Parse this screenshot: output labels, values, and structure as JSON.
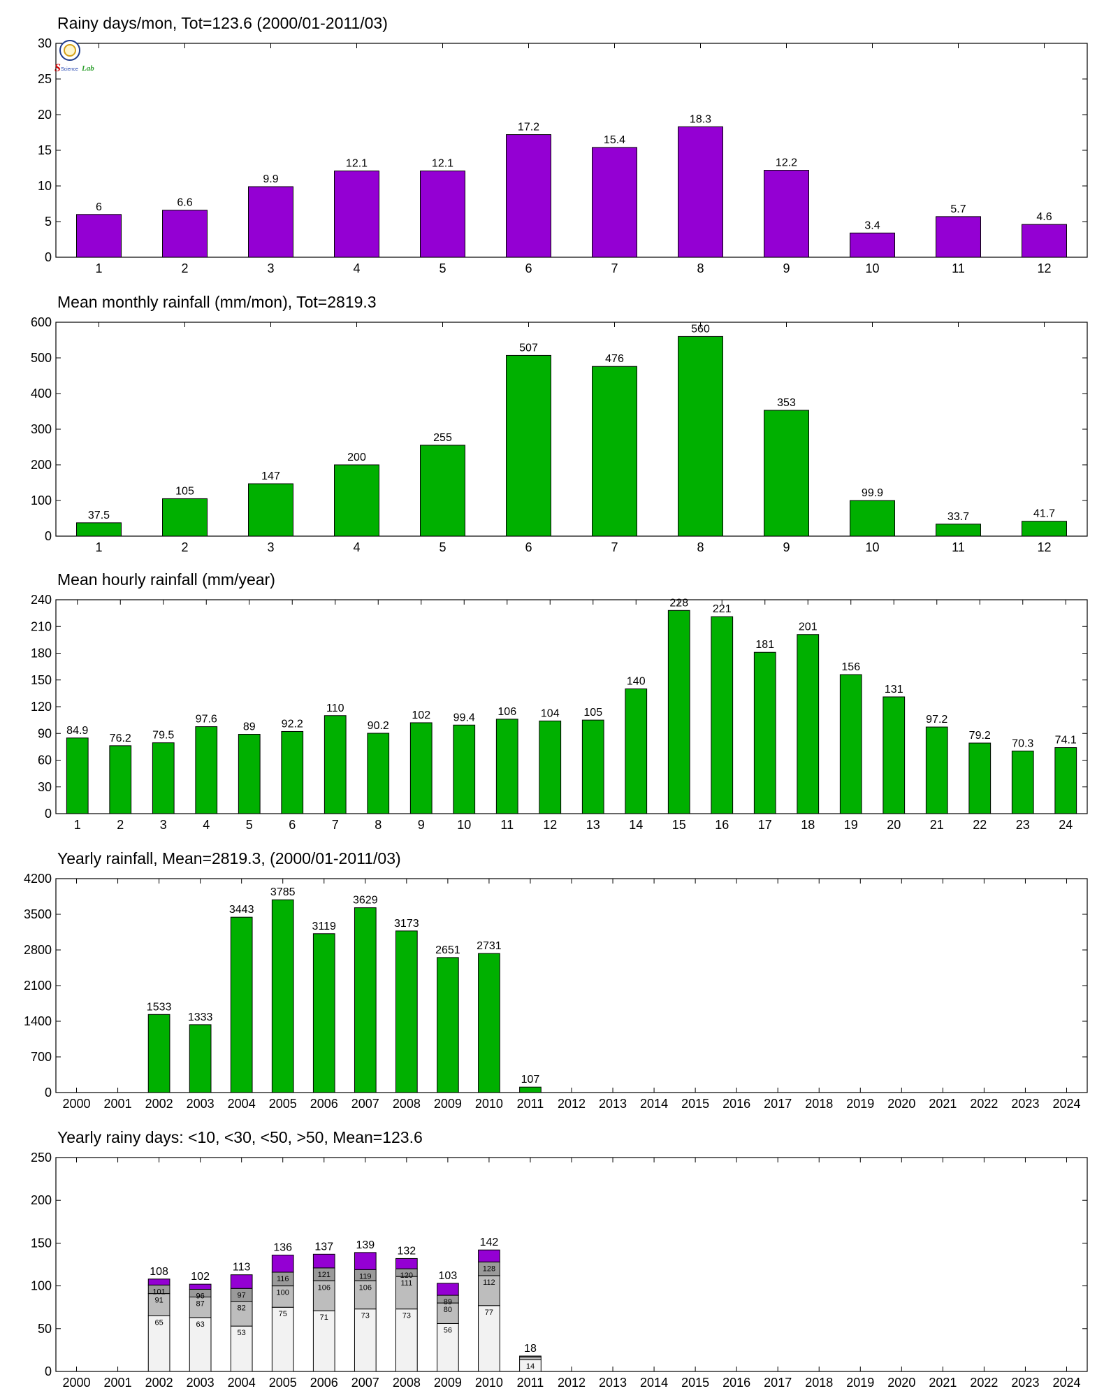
{
  "logo": {
    "text_top": "S",
    "text_mid": "Science",
    "text_right": "Lab",
    "colors": {
      "ring": "#1e3a8a",
      "gold": "#d4a017",
      "red": "#d00000",
      "blue": "#1e40af",
      "green": "#2ea02e"
    }
  },
  "colors": {
    "purple": "#9400d3",
    "green": "#00b000",
    "light_gray": "#f2f2f2",
    "mid_gray": "#bdbdbd",
    "dark_gray": "#9a9a9a"
  },
  "chart_data": [
    {
      "type": "bar",
      "title": "Rainy days/mon, Tot=123.6 (2000/01-2011/03)",
      "categories": [
        "1",
        "2",
        "3",
        "4",
        "5",
        "6",
        "7",
        "8",
        "9",
        "10",
        "11",
        "12"
      ],
      "values": [
        6,
        6.6,
        9.9,
        12.1,
        12.1,
        17.2,
        15.4,
        18.3,
        12.2,
        3.4,
        5.7,
        4.6
      ],
      "labels": [
        "6",
        "6.6",
        "9.9",
        "12.1",
        "12.1",
        "17.2",
        "15.4",
        "18.3",
        "12.2",
        "3.4",
        "5.7",
        "4.6"
      ],
      "ylim": [
        0,
        30
      ],
      "yticks": [
        0,
        5,
        10,
        15,
        20,
        25,
        30
      ],
      "color": "#9400d3",
      "grid": false,
      "xlabel": "",
      "ylabel": ""
    },
    {
      "type": "bar",
      "title": "Mean monthly rainfall (mm/mon), Tot=2819.3",
      "categories": [
        "1",
        "2",
        "3",
        "4",
        "5",
        "6",
        "7",
        "8",
        "9",
        "10",
        "11",
        "12"
      ],
      "values": [
        37.5,
        105,
        147,
        200,
        255,
        507,
        476,
        560,
        353,
        99.9,
        33.7,
        41.7
      ],
      "labels": [
        "37.5",
        "105",
        "147",
        "200",
        "255",
        "507",
        "476",
        "560",
        "353",
        "99.9",
        "33.7",
        "41.7"
      ],
      "ylim": [
        0,
        600
      ],
      "yticks": [
        0,
        100,
        200,
        300,
        400,
        500,
        600
      ],
      "color": "#00b000",
      "grid": false,
      "xlabel": "",
      "ylabel": ""
    },
    {
      "type": "bar",
      "title": "Mean hourly rainfall (mm/year)",
      "categories": [
        "1",
        "2",
        "3",
        "4",
        "5",
        "6",
        "7",
        "8",
        "9",
        "10",
        "11",
        "12",
        "13",
        "14",
        "15",
        "16",
        "17",
        "18",
        "19",
        "20",
        "21",
        "22",
        "23",
        "24"
      ],
      "values": [
        84.9,
        76.2,
        79.5,
        97.6,
        89,
        92.2,
        110,
        90.2,
        102,
        99.4,
        106,
        104,
        105,
        140,
        228,
        221,
        181,
        201,
        156,
        131,
        97.2,
        79.2,
        70.3,
        74.1
      ],
      "labels": [
        "84.9",
        "76.2",
        "79.5",
        "97.6",
        "89",
        "92.2",
        "110",
        "90.2",
        "102",
        "99.4",
        "106",
        "104",
        "105",
        "140",
        "228",
        "221",
        "181",
        "201",
        "156",
        "131",
        "97.2",
        "79.2",
        "70.3",
        "74.1"
      ],
      "ylim": [
        0,
        240
      ],
      "yticks": [
        0,
        30,
        60,
        90,
        120,
        150,
        180,
        210,
        240
      ],
      "color": "#00b000",
      "grid": false,
      "xlabel": "",
      "ylabel": ""
    },
    {
      "type": "bar",
      "title": "Yearly rainfall, Mean=2819.3, (2000/01-2011/03)",
      "categories": [
        "2000",
        "2001",
        "2002",
        "2003",
        "2004",
        "2005",
        "2006",
        "2007",
        "2008",
        "2009",
        "2010",
        "2011",
        "2012",
        "2013",
        "2014",
        "2015",
        "2016",
        "2017",
        "2018",
        "2019",
        "2020",
        "2021",
        "2022",
        "2023",
        "2024"
      ],
      "values": [
        null,
        null,
        1533,
        1333,
        3443,
        3785,
        3119,
        3629,
        3173,
        2651,
        2731,
        107,
        null,
        null,
        null,
        null,
        null,
        null,
        null,
        null,
        null,
        null,
        null,
        null,
        null
      ],
      "labels": [
        "",
        "",
        "1533",
        "1333",
        "3443",
        "3785",
        "3119",
        "3629",
        "3173",
        "2651",
        "2731",
        "107",
        "",
        "",
        "",
        "",
        "",
        "",
        "",
        "",
        "",
        "",
        "",
        "",
        ""
      ],
      "ylim": [
        0,
        4200
      ],
      "yticks": [
        0,
        700,
        1400,
        2100,
        2800,
        3500,
        4200
      ],
      "color": "#00b000",
      "grid": false,
      "xlabel": "",
      "ylabel": ""
    },
    {
      "type": "bar",
      "stacked": true,
      "title": "Yearly rainy days: <10, <30, <50, >50, Mean=123.6",
      "categories": [
        "2000",
        "2001",
        "2002",
        "2003",
        "2004",
        "2005",
        "2006",
        "2007",
        "2008",
        "2009",
        "2010",
        "2011",
        "2012",
        "2013",
        "2014",
        "2015",
        "2016",
        "2017",
        "2018",
        "2019",
        "2020",
        "2021",
        "2022",
        "2023",
        "2024"
      ],
      "cumulative_levels": {
        "lt10": [
          null,
          null,
          65,
          63,
          53,
          75,
          71,
          73,
          73,
          56,
          77,
          14,
          null,
          null,
          null,
          null,
          null,
          null,
          null,
          null,
          null,
          null,
          null,
          null,
          null
        ],
        "lt30": [
          null,
          null,
          91,
          87,
          82,
          100,
          106,
          106,
          111,
          80,
          112,
          17,
          null,
          null,
          null,
          null,
          null,
          null,
          null,
          null,
          null,
          null,
          null,
          null,
          null
        ],
        "lt50": [
          null,
          null,
          101,
          96,
          97,
          116,
          121,
          119,
          120,
          89,
          128,
          18,
          null,
          null,
          null,
          null,
          null,
          null,
          null,
          null,
          null,
          null,
          null,
          null,
          null
        ],
        "total": [
          null,
          null,
          108,
          102,
          113,
          136,
          137,
          139,
          132,
          103,
          142,
          18,
          null,
          null,
          null,
          null,
          null,
          null,
          null,
          null,
          null,
          null,
          null,
          null,
          null
        ]
      },
      "segment_labels": {
        "lt10": [
          "",
          "",
          "65",
          "63",
          "53",
          "75",
          "71",
          "73",
          "73",
          "56",
          "77",
          "14",
          "",
          "",
          "",
          "",
          "",
          "",
          "",
          "",
          "",
          "",
          "",
          "",
          ""
        ],
        "lt30": [
          "",
          "",
          "91",
          "87",
          "82",
          "100",
          "106",
          "106",
          "111",
          "80",
          "112",
          "",
          "",
          "",
          "",
          "",
          "",
          "",
          "",
          "",
          "",
          "",
          "",
          "",
          ""
        ],
        "lt50": [
          "",
          "",
          "101",
          "96",
          "97",
          "116",
          "121",
          "119",
          "120",
          "89",
          "128",
          "",
          "",
          "",
          "",
          "",
          "",
          "",
          "",
          "",
          "",
          "",
          "",
          "",
          ""
        ],
        "total": [
          "",
          "",
          "108",
          "102",
          "113",
          "136",
          "137",
          "139",
          "132",
          "103",
          "142",
          "18",
          "",
          "",
          "",
          "",
          "",
          "",
          "",
          "",
          "",
          "",
          "",
          "",
          ""
        ]
      },
      "segment_colors": {
        "lt10": "#f2f2f2",
        "lt30": "#bdbdbd",
        "lt50": "#9a9a9a",
        "gt50": "#9400d3"
      },
      "ylim": [
        0,
        250
      ],
      "yticks": [
        0,
        50,
        100,
        150,
        200,
        250
      ],
      "grid": false,
      "xlabel": "",
      "ylabel": ""
    }
  ]
}
